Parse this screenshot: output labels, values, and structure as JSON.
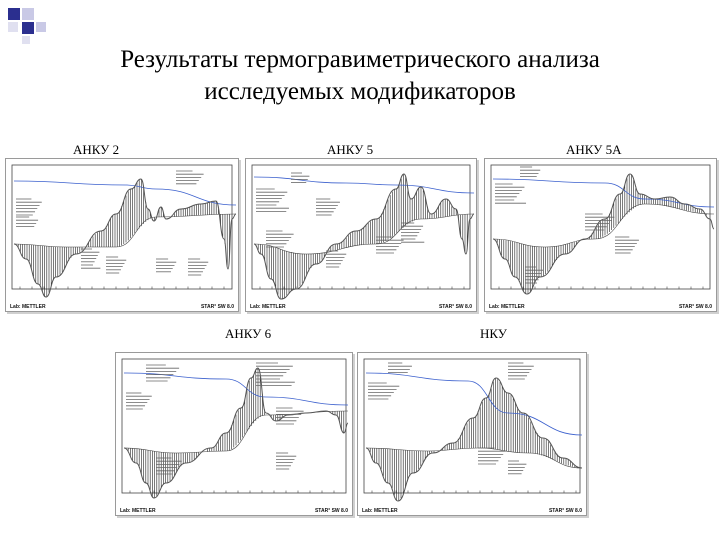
{
  "title": {
    "line1": "Результаты термогравиметрического анализа",
    "line2": "исследуемых модификаторов"
  },
  "charts": [
    {
      "id": "anku2",
      "label": "АНКУ 2",
      "footer_left": "Lab: METTLER",
      "footer_right": "STAR° SW 8.0"
    },
    {
      "id": "anku5",
      "label": "АНКУ 5",
      "footer_left": "Lab: METTLER",
      "footer_right": "STAR° SW 8.0"
    },
    {
      "id": "anku5a",
      "label": "АНКУ 5А",
      "footer_left": "Lab: METTLER",
      "footer_right": "STAR° SW 8.0"
    },
    {
      "id": "anku6",
      "label": "АНКУ 6",
      "footer_left": "Lab: METTLER",
      "footer_right": "STAR° SW 8.0"
    },
    {
      "id": "nku",
      "label": "НКУ",
      "footer_left": "Lab: METTLER",
      "footer_right": "STAR° SW 8.0"
    }
  ],
  "colors": {
    "accent": "#2b2f8f",
    "curve": "#555555",
    "tg_line": "#3a5fcd",
    "hatch": "#222222"
  }
}
